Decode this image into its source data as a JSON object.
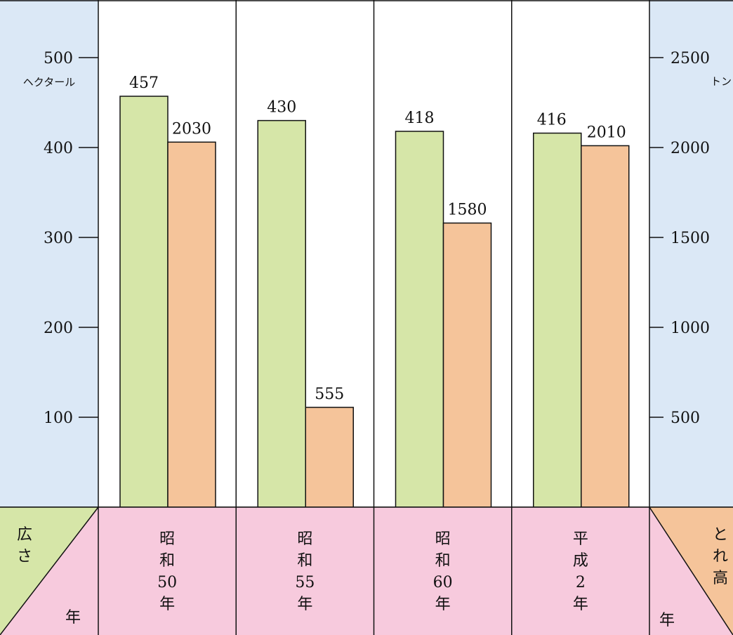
{
  "chart_data": {
    "type": "bar",
    "categories": [
      [
        "昭",
        "和",
        "50",
        "年"
      ],
      [
        "昭",
        "和",
        "55",
        "年"
      ],
      [
        "昭",
        "和",
        "60",
        "年"
      ],
      [
        "平",
        "成",
        "2",
        "年"
      ]
    ],
    "series": [
      {
        "name": "広さ",
        "axis": "left",
        "unit": "ヘクタール",
        "values": [
          457,
          430,
          418,
          416
        ],
        "color": "#d6e6a8"
      },
      {
        "name": "とれ高",
        "axis": "right",
        "unit": "トン",
        "values": [
          2030,
          555,
          1580,
          2010
        ],
        "color": "#f5c49a"
      }
    ],
    "left_axis": {
      "unit": "ヘクタール",
      "ticks": [
        100,
        200,
        300,
        400,
        500
      ],
      "ylim": [
        0,
        550
      ]
    },
    "right_axis": {
      "unit": "トン",
      "ticks": [
        500,
        1000,
        1500,
        2000,
        2500
      ],
      "ylim": [
        0,
        2750
      ]
    },
    "header_left": {
      "top_chars": [
        "広",
        "さ"
      ],
      "bottom": "年"
    },
    "header_right": {
      "top_chars": [
        "と",
        "れ",
        "高"
      ],
      "bottom": "年"
    },
    "colors": {
      "axis_panel": "#dbe8f6",
      "category_band": "#f7cadd",
      "green": "#d6e6a8",
      "orange": "#f5c49a",
      "grid": "#111111"
    },
    "grid": false,
    "legend": "bottom-corners"
  }
}
